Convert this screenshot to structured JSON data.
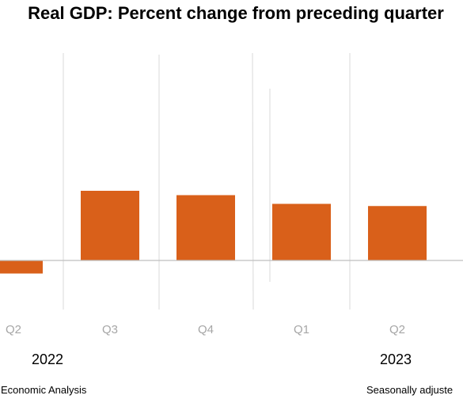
{
  "chart_data": {
    "type": "bar",
    "title": "Real GDP:  Percent change from preceding quarter",
    "categories": [
      "Q2",
      "Q3",
      "Q4",
      "Q1",
      "Q2"
    ],
    "years": [
      "2022",
      "2023"
    ],
    "series": [
      {
        "values": [
          -0.6,
          3.2,
          3.0,
          2.6,
          2.5
        ]
      }
    ],
    "bar_color": "#d9601a",
    "grid": true,
    "legend": "none"
  },
  "footer": {
    "source": "Economic Analysis",
    "note": "Seasonally adjuste"
  }
}
